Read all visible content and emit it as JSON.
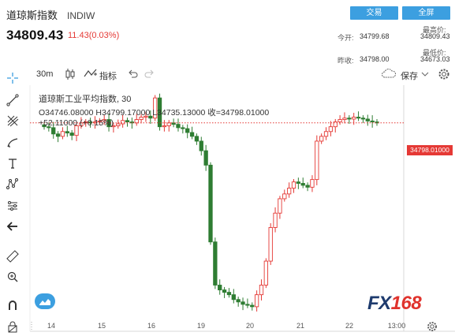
{
  "header": {
    "title": "道琼斯指数",
    "symbol": "INDIW",
    "price": "34809.43",
    "change": "11.43(0.03%)",
    "trade_button": "交易",
    "fullscreen_button": "全屏"
  },
  "stats": {
    "open_label": "今开:",
    "open_value": "34799.68",
    "prev_close_label": "昨收:",
    "prev_close_value": "34798.00",
    "high_label": "最高价:",
    "high_value": "34809.43",
    "low_label": "最低价:",
    "low_value": "34673.03"
  },
  "toolbar": {
    "interval": "30m",
    "indicators_label": "指标",
    "save_label": "保存"
  },
  "legend": {
    "series": "道琼斯工业平均指数, 30",
    "ohlc": "O34746.08000  H34799.17000  L34735.13000  收=34798.01000",
    "change": "+52.11000 (+0.15%)"
  },
  "price_tag": "34798.01000",
  "watermark": {
    "fx": "FX",
    "num": "168"
  },
  "colors": {
    "up": "#e53935",
    "down": "#2e7d32",
    "accent": "#3c9fe0"
  },
  "chart_data": {
    "type": "candlestick",
    "x_ticks": [
      "14",
      "15",
      "16",
      "19",
      "20",
      "21",
      "22",
      "13:00"
    ],
    "last_price": 34798.01,
    "closes": [
      34790,
      34788,
      34775,
      34770,
      34780,
      34777,
      34772,
      34792,
      34798,
      34800,
      34798,
      34800,
      34802,
      34805,
      34790,
      34792,
      34796,
      34803,
      34800,
      34798,
      34805,
      34810,
      34812,
      34808,
      34850,
      34790,
      34792,
      34798,
      34795,
      34788,
      34786,
      34778,
      34770,
      34760,
      34740,
      34710,
      34550,
      34460,
      34450,
      34445,
      34440,
      34430,
      34425,
      34420,
      34418,
      34415,
      34440,
      34460,
      34510,
      34580,
      34610,
      34640,
      34650,
      34662,
      34675,
      34672,
      34668,
      34664,
      34680,
      34760,
      34770,
      34780,
      34790,
      34800,
      34805,
      34808,
      34806,
      34810,
      34808,
      34806,
      34802,
      34800,
      34798
    ]
  }
}
